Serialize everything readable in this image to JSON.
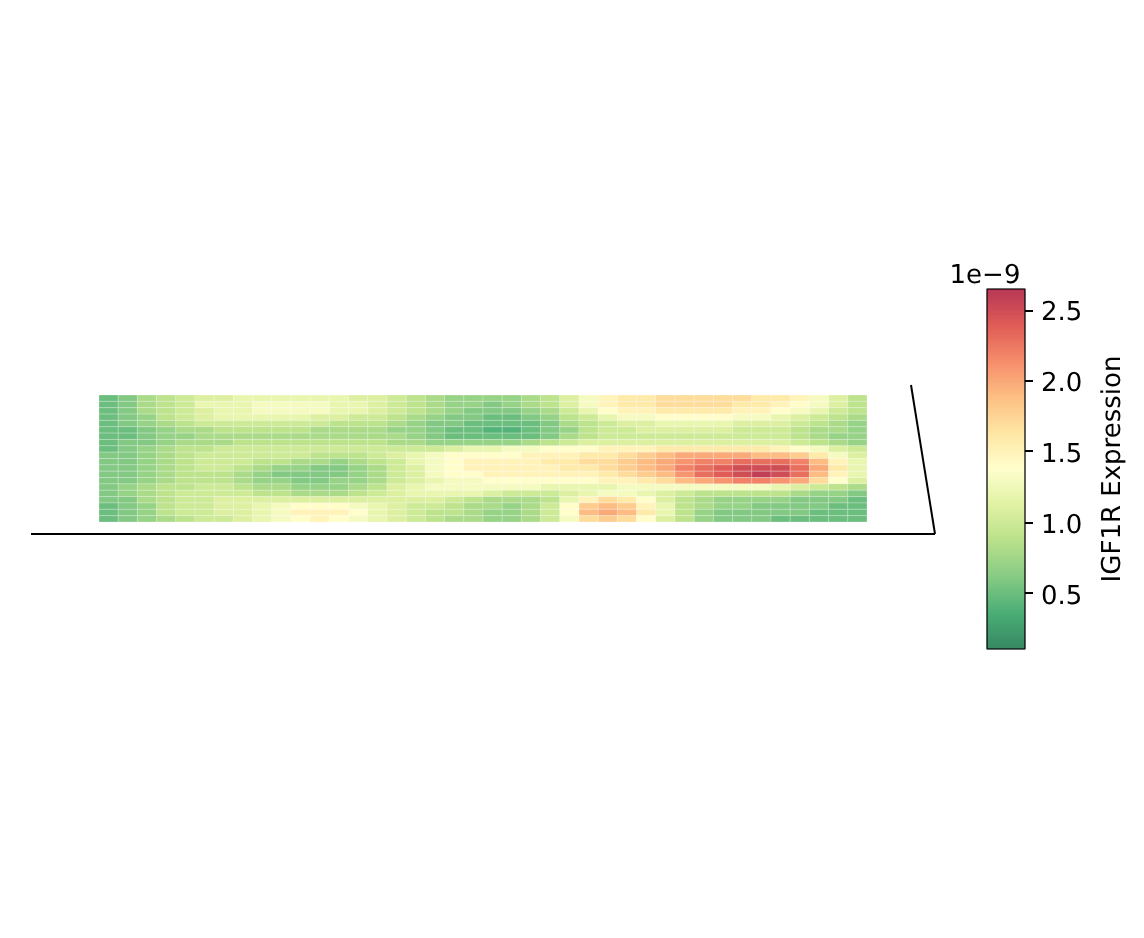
{
  "chart_data": {
    "type": "heatmap",
    "clabel": "IGF1R Expression",
    "annotations": [
      "1e−9"
    ],
    "clim": [
      0.11,
      2.65
    ],
    "cticks": [
      {
        "value": 0.5,
        "label": "0.5"
      },
      {
        "value": 1,
        "label": "1.0"
      },
      {
        "value": 1.5,
        "label": "1.5"
      },
      {
        "value": 2,
        "label": "2.0"
      },
      {
        "value": 2.5,
        "label": "2.5"
      }
    ],
    "categories": [
      null,
      null,
      null,
      null,
      null,
      null,
      null,
      null,
      null,
      null,
      null,
      null,
      null,
      null,
      null,
      null,
      null,
      null,
      null,
      null,
      null,
      null,
      null,
      null,
      null,
      null,
      null,
      null,
      null,
      null,
      null,
      null,
      null,
      null,
      null,
      null,
      null,
      null,
      null,
      null
    ],
    "y_categories": [
      null,
      null,
      null,
      null,
      null,
      null,
      null,
      null,
      null,
      null,
      null,
      null,
      null,
      null,
      null,
      null,
      null,
      null,
      null,
      null
    ],
    "cells": [
      [
        0.5,
        0.6,
        0.8,
        0.9,
        1.0,
        1.1,
        1.1,
        1.2,
        1.2,
        1.2,
        1.2,
        1.2,
        1.2,
        1.1,
        1.1,
        1.0,
        0.9,
        0.8,
        0.7,
        0.7,
        0.7,
        0.7,
        0.8,
        0.9,
        1.1,
        1.3,
        1.5,
        1.6,
        1.6,
        1.7,
        1.7,
        1.7,
        1.7,
        1.7,
        1.6,
        1.6,
        1.5,
        1.3,
        1.1,
        0.9
      ],
      [
        0.5,
        0.6,
        0.8,
        0.9,
        1.0,
        1.2,
        1.2,
        1.2,
        1.3,
        1.3,
        1.3,
        1.3,
        1.2,
        1.2,
        1.1,
        1.0,
        0.9,
        0.8,
        0.7,
        0.7,
        0.6,
        0.7,
        0.8,
        0.9,
        1.1,
        1.3,
        1.5,
        1.6,
        1.6,
        1.7,
        1.7,
        1.7,
        1.7,
        1.6,
        1.6,
        1.5,
        1.4,
        1.3,
        1.1,
        0.9
      ],
      [
        0.5,
        0.6,
        0.8,
        0.9,
        1.0,
        1.1,
        1.2,
        1.2,
        1.3,
        1.3,
        1.3,
        1.3,
        1.2,
        1.2,
        1.1,
        1.0,
        0.9,
        0.8,
        0.7,
        0.6,
        0.6,
        0.6,
        0.7,
        0.8,
        1.0,
        1.2,
        1.4,
        1.5,
        1.5,
        1.6,
        1.6,
        1.6,
        1.6,
        1.5,
        1.5,
        1.4,
        1.3,
        1.2,
        1.0,
        0.9
      ],
      [
        0.5,
        0.6,
        0.7,
        0.9,
        1.0,
        1.1,
        1.2,
        1.2,
        1.2,
        1.2,
        1.2,
        1.1,
        1.1,
        1.0,
        1.0,
        0.9,
        0.8,
        0.7,
        0.6,
        0.6,
        0.5,
        0.5,
        0.6,
        0.7,
        0.9,
        1.0,
        1.2,
        1.3,
        1.3,
        1.4,
        1.4,
        1.4,
        1.4,
        1.3,
        1.3,
        1.2,
        1.1,
        1.0,
        0.9,
        0.8
      ],
      [
        0.5,
        0.6,
        0.7,
        0.8,
        0.9,
        1.0,
        1.0,
        1.0,
        1.0,
        1.0,
        1.0,
        1.0,
        0.9,
        0.9,
        0.9,
        0.8,
        0.7,
        0.6,
        0.6,
        0.5,
        0.5,
        0.5,
        0.5,
        0.6,
        0.8,
        0.9,
        1.0,
        1.1,
        1.1,
        1.2,
        1.2,
        1.2,
        1.2,
        1.1,
        1.1,
        1.1,
        1.0,
        0.9,
        0.8,
        0.7
      ],
      [
        0.5,
        0.5,
        0.6,
        0.7,
        0.8,
        0.8,
        0.9,
        0.9,
        0.9,
        0.9,
        0.9,
        0.8,
        0.8,
        0.8,
        0.8,
        0.7,
        0.7,
        0.6,
        0.5,
        0.5,
        0.4,
        0.4,
        0.5,
        0.6,
        0.7,
        0.9,
        1.0,
        1.0,
        1.1,
        1.1,
        1.1,
        1.1,
        1.1,
        1.0,
        1.0,
        1.0,
        0.9,
        0.8,
        0.8,
        0.7
      ],
      [
        0.5,
        0.5,
        0.6,
        0.7,
        0.7,
        0.8,
        0.8,
        0.8,
        0.8,
        0.8,
        0.8,
        0.8,
        0.8,
        0.8,
        0.8,
        0.8,
        0.7,
        0.6,
        0.5,
        0.5,
        0.5,
        0.5,
        0.5,
        0.6,
        0.8,
        0.9,
        1.0,
        1.0,
        1.0,
        1.0,
        1.0,
        1.0,
        1.0,
        1.0,
        1.0,
        1.0,
        0.9,
        0.8,
        0.7,
        0.7
      ],
      [
        0.5,
        0.6,
        0.6,
        0.7,
        0.8,
        0.8,
        0.8,
        0.9,
        0.9,
        0.9,
        0.9,
        0.9,
        0.9,
        0.9,
        0.9,
        0.8,
        0.8,
        0.7,
        0.7,
        0.7,
        0.7,
        0.7,
        0.8,
        0.9,
        1.0,
        1.1,
        1.1,
        1.1,
        1.1,
        1.1,
        1.1,
        1.1,
        1.1,
        1.1,
        1.1,
        1.1,
        1.0,
        0.9,
        0.8,
        0.7
      ],
      [
        0.5,
        0.6,
        0.7,
        0.8,
        0.9,
        0.9,
        1.0,
        1.0,
        1.0,
        1.0,
        1.0,
        1.0,
        1.0,
        1.0,
        1.0,
        1.0,
        1.0,
        1.0,
        1.1,
        1.2,
        1.2,
        1.3,
        1.3,
        1.4,
        1.4,
        1.4,
        1.5,
        1.5,
        1.5,
        1.6,
        1.6,
        1.6,
        1.6,
        1.6,
        1.6,
        1.5,
        1.4,
        1.3,
        1.1,
        1.0
      ],
      [
        0.6,
        0.6,
        0.7,
        0.8,
        0.9,
        1.0,
        1.0,
        1.0,
        1.0,
        1.0,
        1.0,
        0.9,
        0.9,
        0.9,
        1.0,
        1.1,
        1.2,
        1.3,
        1.4,
        1.4,
        1.4,
        1.4,
        1.5,
        1.5,
        1.5,
        1.6,
        1.6,
        1.7,
        1.8,
        1.9,
        2.0,
        2.0,
        2.0,
        2.0,
        1.9,
        1.9,
        1.8,
        1.6,
        1.3,
        1.1
      ],
      [
        0.6,
        0.6,
        0.7,
        0.8,
        0.9,
        1.0,
        1.0,
        1.0,
        0.9,
        0.9,
        0.8,
        0.8,
        0.7,
        0.8,
        0.9,
        1.0,
        1.2,
        1.3,
        1.4,
        1.5,
        1.5,
        1.5,
        1.5,
        1.6,
        1.6,
        1.7,
        1.7,
        1.8,
        1.9,
        2.0,
        2.1,
        2.2,
        2.2,
        2.3,
        2.3,
        2.3,
        2.2,
        1.9,
        1.5,
        1.2
      ],
      [
        0.6,
        0.6,
        0.7,
        0.8,
        0.9,
        1.0,
        1.0,
        0.9,
        0.8,
        0.7,
        0.7,
        0.6,
        0.6,
        0.7,
        0.8,
        1.0,
        1.1,
        1.3,
        1.4,
        1.5,
        1.5,
        1.5,
        1.5,
        1.5,
        1.6,
        1.6,
        1.7,
        1.8,
        1.9,
        2.0,
        2.2,
        2.3,
        2.4,
        2.5,
        2.5,
        2.5,
        2.3,
        2.0,
        1.6,
        1.2
      ],
      [
        0.6,
        0.6,
        0.7,
        0.8,
        0.9,
        0.9,
        0.9,
        0.8,
        0.7,
        0.6,
        0.6,
        0.6,
        0.6,
        0.7,
        0.8,
        1.0,
        1.1,
        1.3,
        1.4,
        1.4,
        1.5,
        1.5,
        1.5,
        1.5,
        1.5,
        1.5,
        1.6,
        1.7,
        1.8,
        1.9,
        2.1,
        2.3,
        2.4,
        2.5,
        2.6,
        2.5,
        2.3,
        1.9,
        1.5,
        1.2
      ],
      [
        0.6,
        0.6,
        0.7,
        0.8,
        0.9,
        0.9,
        0.9,
        0.8,
        0.7,
        0.7,
        0.6,
        0.6,
        0.7,
        0.7,
        0.8,
        1.0,
        1.1,
        1.2,
        1.3,
        1.3,
        1.4,
        1.4,
        1.4,
        1.4,
        1.4,
        1.4,
        1.5,
        1.5,
        1.6,
        1.7,
        1.9,
        2.0,
        2.1,
        2.2,
        2.2,
        2.1,
        2.0,
        1.7,
        1.4,
        1.1
      ],
      [
        0.6,
        0.7,
        0.8,
        0.9,
        0.9,
        1.0,
        1.0,
        0.9,
        0.8,
        0.8,
        0.7,
        0.7,
        0.7,
        0.8,
        0.9,
        1.1,
        1.2,
        1.3,
        1.3,
        1.3,
        1.3,
        1.3,
        1.3,
        1.2,
        1.2,
        1.2,
        1.2,
        1.3,
        1.3,
        1.3,
        1.3,
        1.3,
        1.3,
        1.3,
        1.3,
        1.2,
        1.1,
        1.0,
        0.9,
        0.8
      ],
      [
        0.6,
        0.7,
        0.8,
        0.9,
        1.0,
        1.0,
        1.0,
        1.0,
        0.9,
        0.9,
        0.8,
        0.8,
        0.8,
        0.9,
        1.0,
        1.1,
        1.2,
        1.2,
        1.2,
        1.2,
        1.1,
        1.0,
        1.0,
        1.0,
        1.1,
        1.2,
        1.3,
        1.3,
        1.2,
        1.1,
        1.0,
        0.9,
        0.9,
        0.9,
        0.9,
        0.9,
        0.8,
        0.7,
        0.7,
        0.6
      ],
      [
        0.6,
        0.6,
        0.8,
        0.9,
        1.0,
        1.0,
        1.1,
        1.1,
        1.1,
        1.1,
        1.1,
        1.1,
        1.1,
        1.1,
        1.1,
        1.1,
        1.1,
        1.1,
        1.0,
        0.9,
        0.8,
        0.8,
        0.8,
        0.9,
        1.2,
        1.5,
        1.7,
        1.6,
        1.4,
        1.1,
        0.9,
        0.8,
        0.7,
        0.7,
        0.7,
        0.7,
        0.6,
        0.6,
        0.6,
        0.5
      ],
      [
        0.5,
        0.6,
        0.7,
        0.9,
        1.0,
        1.0,
        1.1,
        1.1,
        1.2,
        1.3,
        1.4,
        1.4,
        1.4,
        1.3,
        1.2,
        1.1,
        1.0,
        1.0,
        0.9,
        0.8,
        0.8,
        0.7,
        0.8,
        1.0,
        1.4,
        1.8,
        1.9,
        1.8,
        1.5,
        1.2,
        0.9,
        0.8,
        0.7,
        0.7,
        0.6,
        0.6,
        0.6,
        0.6,
        0.5,
        0.5
      ],
      [
        0.5,
        0.6,
        0.7,
        0.9,
        1.0,
        1.0,
        1.1,
        1.1,
        1.2,
        1.3,
        1.5,
        1.5,
        1.5,
        1.4,
        1.2,
        1.1,
        1.0,
        0.9,
        0.9,
        0.8,
        0.7,
        0.7,
        0.8,
        1.0,
        1.4,
        1.9,
        2.0,
        1.9,
        1.6,
        1.2,
        0.9,
        0.7,
        0.6,
        0.6,
        0.6,
        0.6,
        0.6,
        0.5,
        0.5,
        0.5
      ],
      [
        0.5,
        0.6,
        0.7,
        0.8,
        0.9,
        1.0,
        1.0,
        1.1,
        1.2,
        1.3,
        1.4,
        1.5,
        1.4,
        1.3,
        1.2,
        1.1,
        1.0,
        0.9,
        0.8,
        0.8,
        0.7,
        0.7,
        0.8,
        1.0,
        1.3,
        1.7,
        1.8,
        1.7,
        1.4,
        1.1,
        0.9,
        0.7,
        0.6,
        0.6,
        0.6,
        0.5,
        0.5,
        0.5,
        0.5,
        0.5
      ]
    ]
  }
}
